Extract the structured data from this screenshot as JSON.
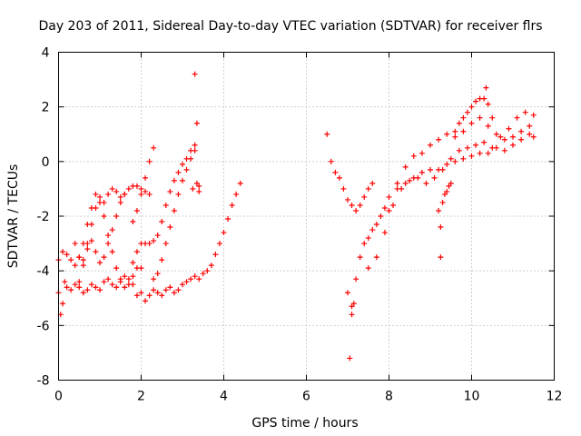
{
  "chart_data": {
    "type": "scatter",
    "title": "Day 203 of 2011, Sidereal Day-to-day VTEC variation (SDTVAR) for receiver flrs",
    "xlabel": "GPS time / hours",
    "ylabel": "SDTVAR / TECUs",
    "xlim": [
      0,
      12
    ],
    "ylim": [
      -8,
      4
    ],
    "xticks": [
      0,
      2,
      4,
      6,
      8,
      10,
      12
    ],
    "yticks": [
      -8,
      -6,
      -4,
      -2,
      0,
      2,
      4
    ],
    "grid": true,
    "marker": "+",
    "color": "#ff0000",
    "series": [
      {
        "x": [
          0.0,
          0.05,
          0.1,
          0.15,
          0.2,
          0.3,
          0.4,
          0.5,
          0.6,
          0.7,
          0.8,
          0.9,
          1.0,
          1.1,
          1.2,
          1.3,
          1.4,
          1.5,
          1.6,
          1.7,
          1.8,
          1.9,
          2.0,
          2.1,
          2.2,
          2.3,
          2.4,
          2.5,
          2.6,
          2.7,
          2.8,
          2.9,
          3.0,
          3.1,
          3.2,
          3.3,
          3.4,
          3.5,
          3.6,
          3.7,
          3.8,
          3.9,
          4.0,
          4.1,
          4.2,
          4.3,
          4.4
        ],
        "y": [
          -4.8,
          -5.6,
          -5.2,
          -4.4,
          -4.6,
          -4.7,
          -4.5,
          -4.6,
          -4.8,
          -4.7,
          -4.5,
          -4.6,
          -4.7,
          -4.4,
          -4.3,
          -4.5,
          -4.6,
          -4.4,
          -4.2,
          -4.3,
          -4.5,
          -4.9,
          -4.8,
          -5.1,
          -4.9,
          -4.7,
          -4.8,
          -4.9,
          -4.7,
          -4.6,
          -4.8,
          -4.7,
          -4.5,
          -4.4,
          -4.3,
          -4.2,
          -4.3,
          -4.1,
          -4.0,
          -3.8,
          -3.4,
          -3.0,
          -2.6,
          -2.1,
          -1.6,
          -1.2,
          -0.8
        ]
      },
      {
        "x": [
          0.0,
          0.1,
          0.2,
          0.3,
          0.4,
          0.5,
          0.6,
          0.7,
          0.8,
          0.9,
          1.0,
          1.1,
          1.2,
          1.3,
          1.4,
          1.5,
          1.6,
          1.7,
          1.8,
          1.9,
          2.0,
          2.1,
          2.2
        ],
        "y": [
          -3.6,
          -3.3,
          -3.4,
          -3.6,
          -3.8,
          -3.5,
          -3.0,
          -2.3,
          -1.7,
          -1.2,
          -1.3,
          -1.5,
          -1.2,
          -1.0,
          -1.1,
          -1.3,
          -1.2,
          -1.0,
          -0.9,
          -0.9,
          -1.0,
          -1.1,
          -1.2
        ]
      },
      {
        "x": [
          0.5,
          0.6,
          0.7,
          0.8,
          0.9,
          1.0,
          1.1,
          1.2,
          1.3,
          1.4,
          1.5,
          1.6,
          1.7,
          1.8,
          1.9,
          2.0
        ],
        "y": [
          -4.4,
          -3.8,
          -3.0,
          -2.3,
          -1.7,
          -1.5,
          -2.0,
          -2.7,
          -3.3,
          -3.9,
          -4.3,
          -4.6,
          -4.5,
          -4.2,
          -3.9,
          -3.9
        ]
      },
      {
        "x": [
          0.4,
          0.5,
          0.6,
          0.7,
          0.8,
          0.9,
          1.0,
          1.1,
          1.2,
          1.3,
          1.4,
          1.5,
          1.6
        ],
        "y": [
          -3.0,
          -3.5,
          -3.6,
          -3.2,
          -2.9,
          -3.3,
          -3.7,
          -3.5,
          -3.0,
          -2.5,
          -2.0,
          -1.5,
          -1.2
        ]
      },
      {
        "x": [
          1.8,
          1.9,
          2.0,
          2.1,
          2.2,
          2.3
        ],
        "y": [
          -2.2,
          -1.8,
          -1.2,
          -0.6,
          0.0,
          0.5
        ]
      },
      {
        "x": [
          1.8,
          1.9,
          2.0,
          2.1,
          2.2,
          2.3,
          2.4,
          2.5,
          2.6,
          2.7,
          2.8,
          2.9,
          3.0,
          3.1,
          3.2,
          3.3
        ],
        "y": [
          -3.7,
          -3.3,
          -3.0,
          -3.0,
          -3.0,
          -2.9,
          -2.7,
          -2.2,
          -1.6,
          -1.1,
          -0.7,
          -0.4,
          -0.1,
          0.1,
          0.4,
          0.6
        ]
      },
      {
        "x": [
          2.3,
          2.4,
          2.5,
          2.6,
          2.7,
          2.8,
          2.9,
          3.0,
          3.1,
          3.2,
          3.3
        ],
        "y": [
          -4.3,
          -4.1,
          -3.6,
          -3.0,
          -2.4,
          -1.8,
          -1.2,
          -0.7,
          -0.3,
          0.1,
          0.4
        ]
      },
      {
        "x": [
          3.3,
          3.35,
          3.4,
          3.4,
          3.25,
          3.35,
          6.5,
          6.6,
          6.7,
          6.8,
          6.9,
          7.0,
          7.1,
          7.2,
          7.3,
          7.4,
          7.5,
          7.6
        ],
        "y": [
          3.2,
          1.4,
          -0.9,
          -1.1,
          -1.0,
          -0.8,
          1.0,
          0.0,
          -0.4,
          -0.6,
          -1.0,
          -1.4,
          -1.6,
          -1.8,
          -1.6,
          -1.3,
          -1.0,
          -0.8
        ]
      },
      {
        "x": [
          7.0,
          7.1,
          7.15,
          7.2,
          7.3,
          7.4,
          7.5,
          7.6,
          7.7,
          7.8,
          7.9,
          8.0,
          8.2,
          8.4,
          8.6,
          8.8,
          9.0,
          9.2,
          9.4,
          9.6,
          9.8,
          10.0,
          10.2,
          10.4,
          10.6,
          10.8,
          11.0,
          11.2,
          11.4,
          11.5
        ],
        "y": [
          -4.8,
          -5.6,
          -5.2,
          -4.3,
          -3.5,
          -3.0,
          -2.8,
          -2.5,
          -2.3,
          -2.0,
          -1.7,
          -1.3,
          -1.0,
          -0.8,
          -0.6,
          -0.4,
          -0.3,
          -0.3,
          -0.1,
          0.0,
          0.1,
          0.2,
          0.3,
          0.3,
          0.5,
          0.4,
          0.6,
          0.8,
          1.0,
          0.9
        ]
      },
      {
        "x": [
          7.5,
          7.7,
          7.9,
          8.1,
          8.3,
          8.5,
          8.7,
          8.9,
          9.1,
          9.3,
          9.5,
          9.7,
          9.9,
          10.1,
          10.3,
          10.5,
          10.7,
          10.9,
          11.1,
          11.3,
          11.5
        ],
        "y": [
          -3.9,
          -3.5,
          -2.6,
          -1.6,
          -1.0,
          -0.7,
          -0.6,
          -0.8,
          -0.6,
          -0.3,
          0.1,
          0.4,
          0.5,
          0.6,
          0.7,
          0.5,
          0.9,
          1.2,
          1.6,
          1.8,
          1.7
        ]
      },
      {
        "x": [
          8.0,
          8.2,
          8.4,
          8.6,
          8.8,
          9.0,
          9.2,
          9.4,
          9.6,
          9.8,
          10.0,
          10.2,
          10.4,
          10.6,
          10.8,
          11.0,
          11.2,
          11.4
        ],
        "y": [
          -1.8,
          -0.8,
          -0.2,
          0.2,
          0.3,
          0.6,
          0.8,
          1.0,
          0.9,
          1.1,
          1.4,
          1.6,
          1.3,
          1.0,
          0.8,
          0.9,
          1.1,
          1.3
        ]
      },
      {
        "x": [
          9.6,
          9.7,
          9.8,
          9.9,
          10.0,
          10.1,
          10.2,
          10.3,
          10.35,
          10.4,
          10.5
        ],
        "y": [
          1.1,
          1.4,
          1.6,
          1.8,
          2.0,
          2.2,
          2.3,
          2.3,
          2.7,
          2.1,
          1.6
        ]
      },
      {
        "x": [
          9.2,
          9.25,
          9.3,
          9.35,
          9.4,
          9.45,
          9.5,
          7.05,
          9.25,
          7.1
        ],
        "y": [
          -1.8,
          -2.4,
          -1.5,
          -1.2,
          -1.1,
          -0.9,
          -0.8,
          -7.2,
          -3.5,
          -5.3
        ]
      }
    ]
  }
}
